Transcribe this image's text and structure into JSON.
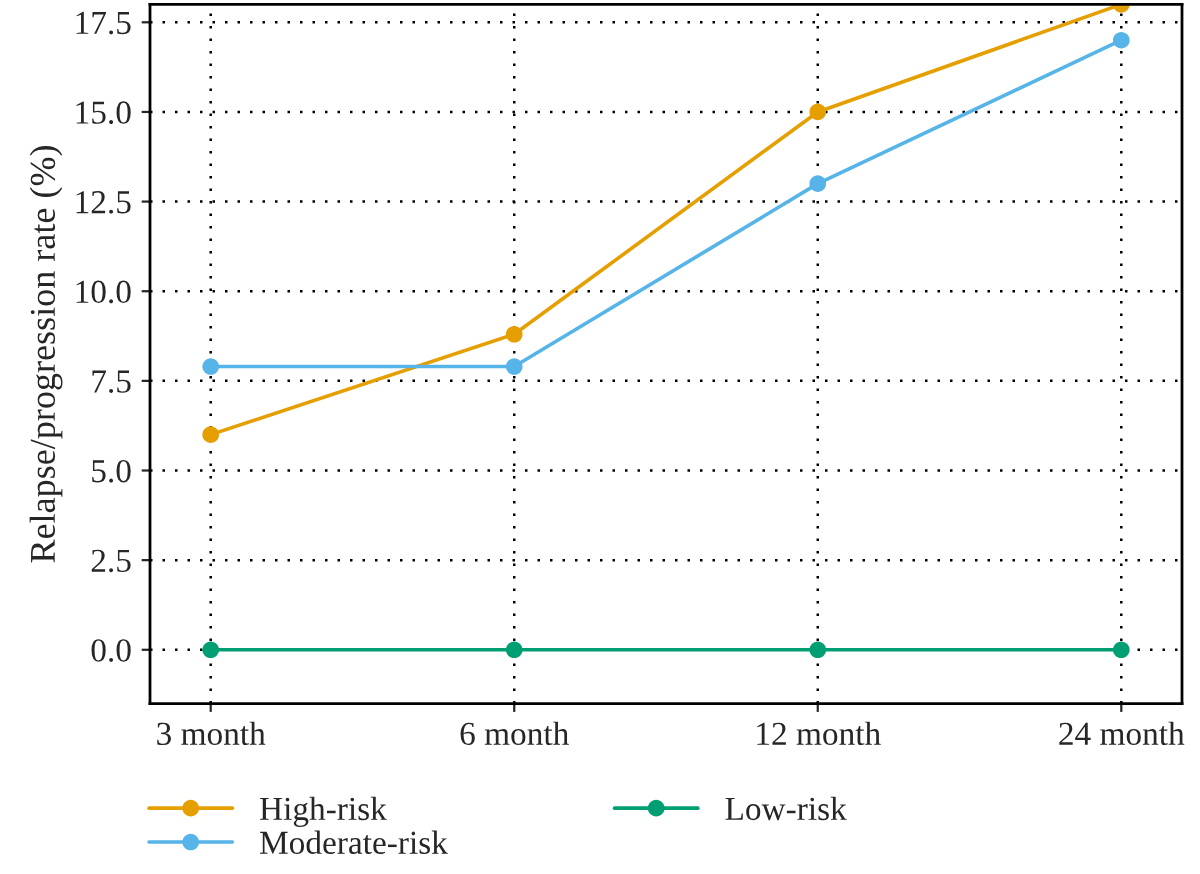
{
  "chart_data": {
    "type": "line",
    "ylabel": "Relapse/progression rate (%)",
    "categories": [
      "3 month",
      "6 month",
      "12 month",
      "24 month"
    ],
    "series": [
      {
        "name": "High-risk",
        "color": "#e69f00",
        "values": [
          6.0,
          8.8,
          15.0,
          18.0
        ]
      },
      {
        "name": "Moderate-risk",
        "color": "#56b4e9",
        "values": [
          7.9,
          7.9,
          13.0,
          17.0
        ]
      },
      {
        "name": "Low-risk",
        "color": "#009e73",
        "values": [
          0,
          0,
          0,
          0
        ]
      }
    ],
    "ylim": [
      -1.5,
      18.0
    ],
    "yticks": [
      {
        "value": 0,
        "label": "0.0"
      },
      2.5,
      {
        "value": 5,
        "label": "5.0"
      },
      7.5,
      {
        "value": 10,
        "label": "10.0"
      },
      12.5,
      {
        "value": 15,
        "label": "15.0"
      },
      17.5
    ],
    "grid": true,
    "legend": "bottom",
    "marker": "circle",
    "line_style": "solid"
  }
}
